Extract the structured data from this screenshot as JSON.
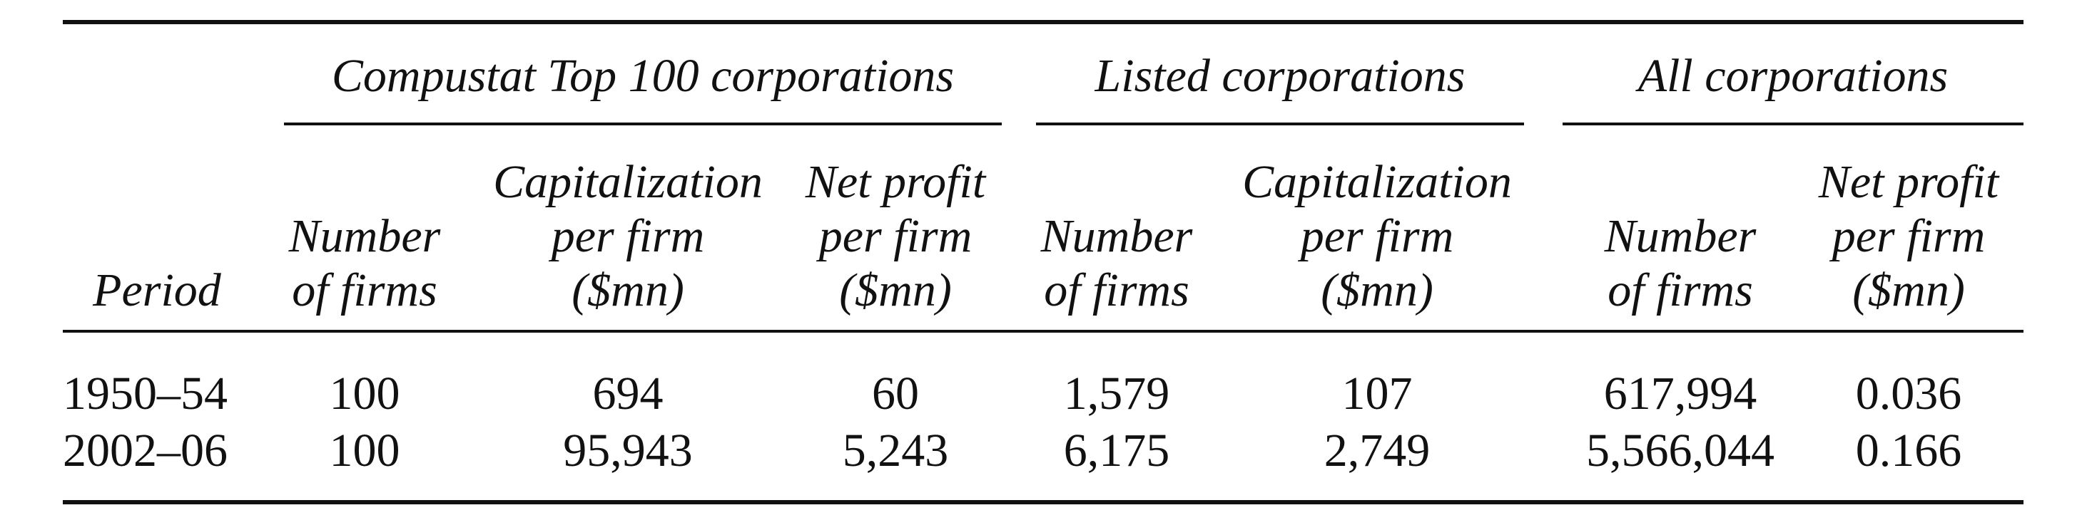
{
  "table": {
    "groups": [
      {
        "label": "Compustat Top 100 corporations"
      },
      {
        "label": "Listed corporations"
      },
      {
        "label": "All corporations"
      }
    ],
    "columns": [
      {
        "lines": [
          "Period"
        ]
      },
      {
        "lines": [
          "Number",
          "of firms"
        ]
      },
      {
        "lines": [
          "Capitalization",
          "per firm",
          "($mn)"
        ]
      },
      {
        "lines": [
          "Net profit",
          "per firm",
          "($mn)"
        ]
      },
      {
        "lines": [
          "Number",
          "of firms"
        ]
      },
      {
        "lines": [
          "Capitalization",
          "per firm",
          "($mn)"
        ]
      },
      {
        "lines": [
          "Number",
          "of firms"
        ]
      },
      {
        "lines": [
          "Net profit",
          "per firm",
          "($mn)"
        ]
      }
    ],
    "rows": [
      {
        "cells": [
          "1950–54",
          "100",
          "694",
          "60",
          "1,579",
          "107",
          "617,994",
          "0.036"
        ]
      },
      {
        "cells": [
          "2002–06",
          "100",
          "95,943",
          "5,243",
          "6,175",
          "2,749",
          "5,566,044",
          "0.166"
        ]
      }
    ]
  }
}
